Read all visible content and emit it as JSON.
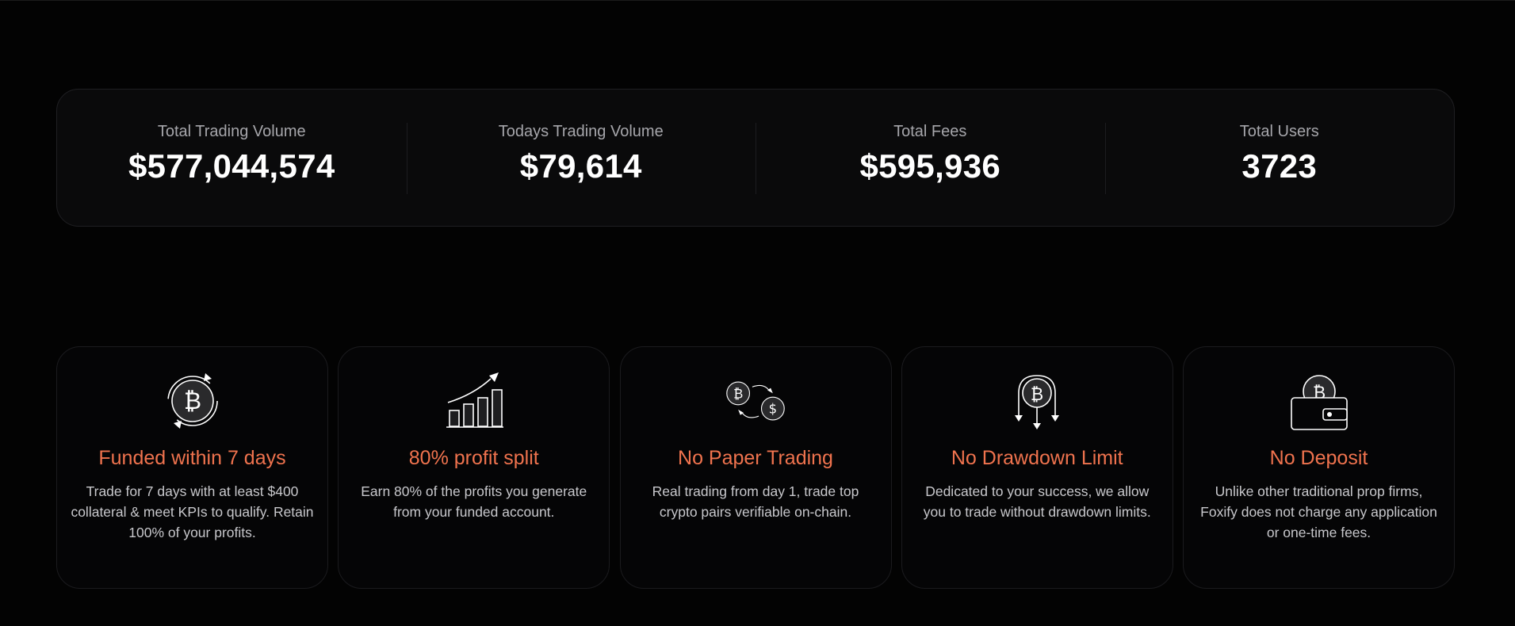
{
  "stats": [
    {
      "label": "Total Trading Volume",
      "value": "$577,044,574"
    },
    {
      "label": "Todays Trading Volume",
      "value": "$79,614"
    },
    {
      "label": "Total Fees",
      "value": "$595,936"
    },
    {
      "label": "Total Users",
      "value": "3723"
    }
  ],
  "features": [
    {
      "icon": "bitcoin-cycle-icon",
      "title": "Funded within 7 days",
      "description": "Trade for 7 days with at least $400 collateral & meet KPIs to qualify. Retain 100% of your profits."
    },
    {
      "icon": "growth-chart-icon",
      "title": "80% profit split",
      "description": "Earn 80% of the profits you generate from your funded account."
    },
    {
      "icon": "crypto-exchange-icon",
      "title": "No Paper Trading",
      "description": "Real trading from day 1, trade top crypto pairs verifiable on-chain."
    },
    {
      "icon": "bitcoin-down-arrows-icon",
      "title": "No Drawdown Limit",
      "description": "Dedicated to your success, we allow you to trade without drawdown limits."
    },
    {
      "icon": "bitcoin-wallet-icon",
      "title": "No Deposit",
      "description": "Unlike other traditional prop firms, Foxify does not charge any application or one-time fees."
    }
  ],
  "colors": {
    "background": "#030303",
    "accent": "#f0734e",
    "panel": "#0a0a0b"
  }
}
